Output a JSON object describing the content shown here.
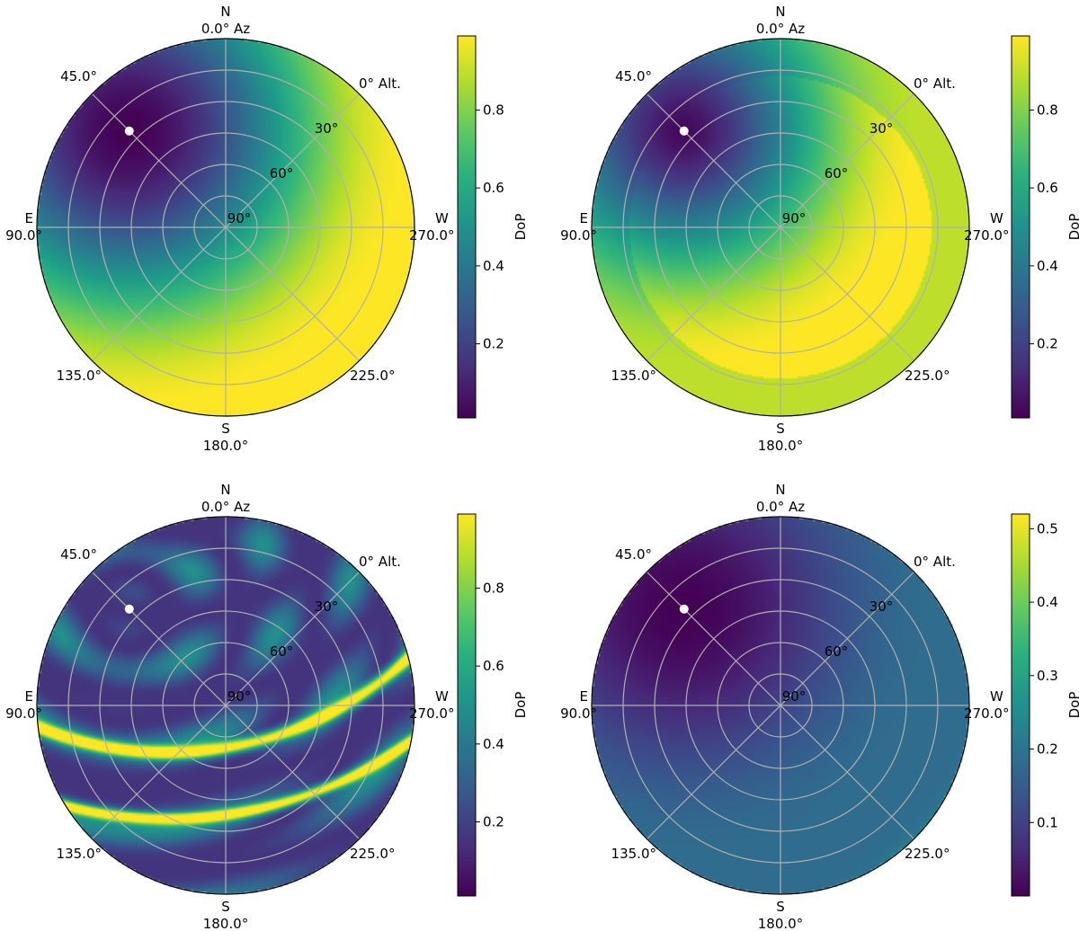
{
  "figure": {
    "colorbar_label": "DoP",
    "compass": {
      "north": "N",
      "south": "S",
      "east": "E",
      "west": "W"
    },
    "azimuth_labels": {
      "top": "0.0° Az",
      "upper_left": "45.0°",
      "left": "90.0°",
      "lower_left": "135.0°",
      "bottom": "180.0°",
      "lower_right": "225.0°",
      "right": "270.0°"
    },
    "altitude_labels": [
      "0° Alt.",
      "30°",
      "60°",
      "90°"
    ]
  },
  "chart_data": [
    {
      "type": "heatmap",
      "projection": "polar sky map (altitude/azimuth)",
      "panel": "top-left",
      "colormap": "viridis",
      "colorbar": {
        "label": "DoP",
        "ticks": [
          "0.2",
          "0.4",
          "0.6",
          "0.8"
        ],
        "range": [
          0.01,
          0.99
        ]
      },
      "azimuth_ticks_deg": [
        0,
        45,
        90,
        135,
        180,
        225,
        270
      ],
      "altitude_rings_deg": [
        0,
        15,
        30,
        45,
        60,
        75,
        90
      ],
      "marker": {
        "azimuth_deg": 45,
        "altitude_deg": 25,
        "color": "#ffffff"
      },
      "description_values": {
        "max_band_center_azimuth_deg": 225,
        "max_band_center_altitude_deg": 60
      }
    },
    {
      "type": "heatmap",
      "projection": "polar sky map (altitude/azimuth)",
      "panel": "top-right",
      "colormap": "viridis",
      "colorbar": {
        "label": "DoP",
        "ticks": [
          "0.2",
          "0.4",
          "0.6",
          "0.8"
        ],
        "range": [
          0.01,
          0.99
        ]
      },
      "azimuth_ticks_deg": [
        0,
        45,
        90,
        135,
        180,
        225,
        270
      ],
      "altitude_rings_deg": [
        0,
        15,
        30,
        45,
        60,
        75,
        90
      ],
      "marker": {
        "azimuth_deg": 45,
        "altitude_deg": 25,
        "color": "#ffffff"
      }
    },
    {
      "type": "heatmap",
      "projection": "polar sky map (altitude/azimuth)",
      "panel": "bottom-left",
      "colormap": "viridis",
      "colorbar": {
        "label": "DoP",
        "ticks": [
          "0.2",
          "0.4",
          "0.6",
          "0.8"
        ],
        "range": [
          0.01,
          0.99
        ]
      },
      "azimuth_ticks_deg": [
        0,
        45,
        90,
        135,
        180,
        225,
        270
      ],
      "altitude_rings_deg": [
        0,
        15,
        30,
        45,
        60,
        75,
        90
      ],
      "marker": {
        "azimuth_deg": 45,
        "altitude_deg": 25,
        "color": "#ffffff"
      }
    },
    {
      "type": "heatmap",
      "projection": "polar sky map (altitude/azimuth)",
      "panel": "bottom-right",
      "colormap": "viridis",
      "colorbar": {
        "label": "DoP",
        "ticks": [
          "0.1",
          "0.2",
          "0.3",
          "0.4",
          "0.5"
        ],
        "range": [
          0.0,
          0.52
        ]
      },
      "azimuth_ticks_deg": [
        0,
        45,
        90,
        135,
        180,
        225,
        270
      ],
      "altitude_rings_deg": [
        0,
        15,
        30,
        45,
        60,
        75,
        90
      ],
      "marker": {
        "azimuth_deg": 45,
        "altitude_deg": 25,
        "color": "#ffffff"
      }
    }
  ]
}
